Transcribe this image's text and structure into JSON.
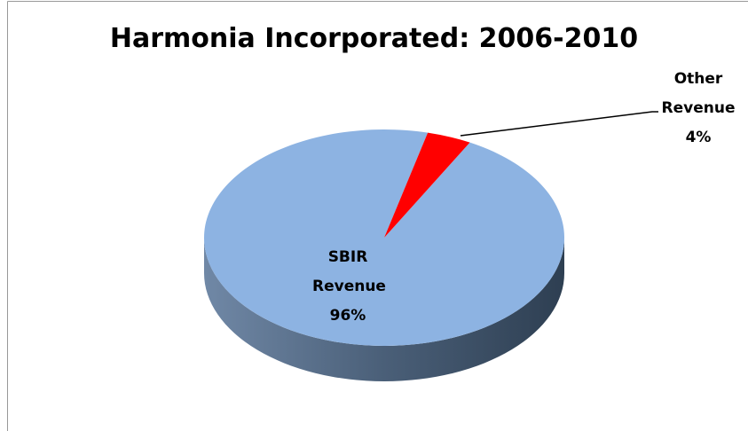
{
  "chart_data": {
    "type": "pie",
    "title": "Harmonia Incorporated: 2006-2010",
    "categories": [
      "SBIR Revenue",
      "Other Revenue"
    ],
    "values": [
      96,
      4
    ],
    "value_labels": [
      "96%",
      "4%"
    ],
    "colors": [
      "#8db3e2",
      "#ff0000"
    ]
  }
}
